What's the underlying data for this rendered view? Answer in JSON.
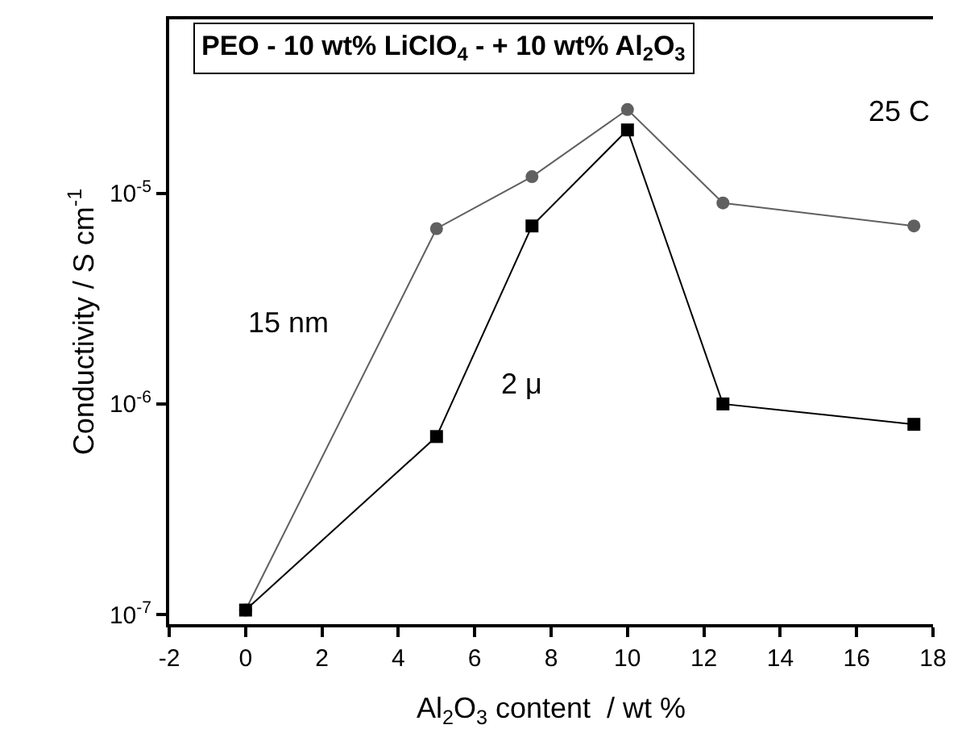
{
  "chart_data": {
    "type": "line",
    "title": "PEO - 10 wt% LiClO$_{4}$ - + 10 wt% Al$_{2}$O$_{3}$",
    "xlabel": "Al$_{2}$O$_{3}$ content  / wt %",
    "ylabel": "Conductivity / S cm$^{-1}$",
    "x": [
      0,
      5,
      7.5,
      10,
      12.5,
      17.5
    ],
    "series": [
      {
        "color": "#606060",
        "marker": "circle",
        "values": [
          1.05e-07,
          6.8e-06,
          1.2e-05,
          2.5e-05,
          9e-06,
          7e-06
        ]
      },
      {
        "color": "#000000",
        "marker": "square",
        "values": [
          1.05e-07,
          7e-07,
          7e-06,
          2e-05,
          1e-06,
          8e-07
        ]
      }
    ],
    "annotations": [
      "15 nm",
      "2 μ",
      "25 C"
    ],
    "log": "y",
    "xlim": [
      -2,
      18
    ],
    "xticks": [
      -2,
      0,
      2,
      4,
      6,
      8,
      10,
      12,
      14,
      16,
      18
    ],
    "ylim": [
      9e-08,
      6.7e-05
    ],
    "yticks": [
      {
        "value": 1e-07,
        "label": "10$^{-7}$"
      },
      {
        "value": 1e-06,
        "label": "10$^{-6}$"
      },
      {
        "value": 1e-05,
        "label": "10$^{-5}$"
      }
    ],
    "grid": false
  }
}
